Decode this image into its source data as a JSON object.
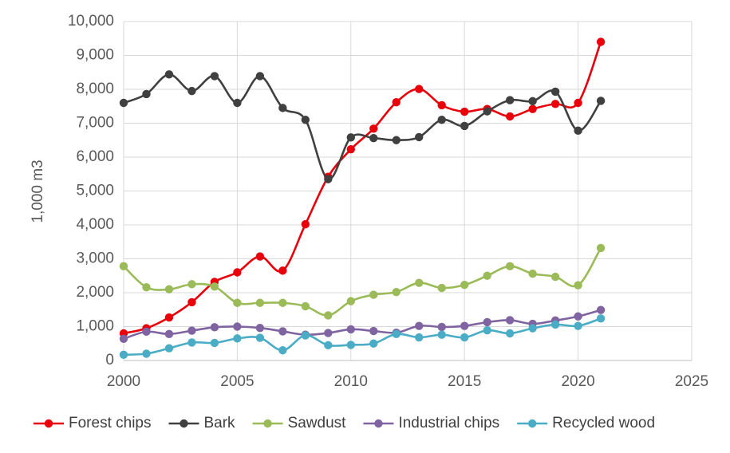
{
  "chart_data": {
    "type": "line",
    "title": "",
    "xlabel": "",
    "ylabel": "1,000 m3",
    "xlim": [
      2000,
      2025
    ],
    "ylim": [
      0,
      10000
    ],
    "x_ticks": [
      2000,
      2005,
      2010,
      2015,
      2020,
      2025
    ],
    "x_tick_labels": [
      "2000",
      "2005",
      "2010",
      "2015",
      "2020",
      "2025"
    ],
    "y_ticks": [
      0,
      1000,
      2000,
      3000,
      4000,
      5000,
      6000,
      7000,
      8000,
      9000,
      10000
    ],
    "y_tick_labels": [
      "0",
      "1,000",
      "2,000",
      "3,000",
      "4,000",
      "5,000",
      "6,000",
      "7,000",
      "8,000",
      "9,000",
      "10,000"
    ],
    "grid": true,
    "legend_position": "bottom",
    "x": [
      2000,
      2001,
      2002,
      2003,
      2004,
      2005,
      2006,
      2007,
      2008,
      2009,
      2010,
      2011,
      2012,
      2013,
      2014,
      2015,
      2016,
      2017,
      2018,
      2019,
      2020,
      2021
    ],
    "series": [
      {
        "name": "Forest chips",
        "color": "#e8000b",
        "values": [
          800,
          950,
          1270,
          1720,
          2320,
          2600,
          3070,
          2650,
          4020,
          5420,
          6230,
          6840,
          7620,
          8010,
          7530,
          7340,
          7420,
          7200,
          7420,
          7570,
          7600,
          9400
        ]
      },
      {
        "name": "Bark",
        "color": "#404040",
        "values": [
          7600,
          7860,
          8440,
          7950,
          8390,
          7600,
          8390,
          7450,
          7100,
          5350,
          6580,
          6560,
          6500,
          6590,
          7100,
          6920,
          7350,
          7680,
          7650,
          7930,
          6780,
          7660
        ]
      },
      {
        "name": "Sawdust",
        "color": "#9bbb59",
        "values": [
          2780,
          2160,
          2100,
          2250,
          2180,
          1700,
          1700,
          1700,
          1600,
          1330,
          1750,
          1940,
          2020,
          2290,
          2140,
          2230,
          2500,
          2780,
          2560,
          2470,
          2220,
          3320
        ]
      },
      {
        "name": "Industrial chips",
        "color": "#8064a2",
        "values": [
          640,
          850,
          780,
          880,
          980,
          1000,
          960,
          860,
          760,
          810,
          920,
          870,
          820,
          1020,
          990,
          1020,
          1130,
          1190,
          1080,
          1180,
          1300,
          1490
        ]
      },
      {
        "name": "Recycled wood",
        "color": "#4bacc6",
        "values": [
          170,
          200,
          360,
          530,
          520,
          650,
          670,
          300,
          740,
          450,
          460,
          500,
          780,
          680,
          760,
          680,
          890,
          800,
          950,
          1060,
          1020,
          1240
        ]
      }
    ]
  }
}
